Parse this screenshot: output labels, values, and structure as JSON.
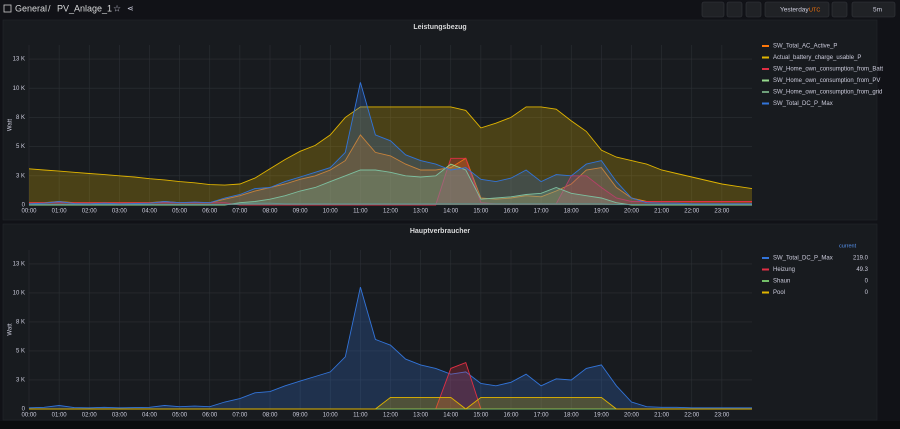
{
  "header": {
    "home": "General",
    "separator": "/",
    "dashboard": "PV_Anlage_1",
    "time_range": "Yesterday",
    "timezone": "UTC",
    "refresh": "5m"
  },
  "chart_data": [
    {
      "type": "line",
      "title": "Leistungsbezug",
      "y_label": "Watt",
      "grid": true,
      "legend": "right",
      "x": [
        0,
        0.5,
        1,
        1.5,
        2,
        2.5,
        3,
        3.5,
        4,
        4.5,
        5,
        5.5,
        6,
        6.5,
        7,
        7.5,
        8,
        8.5,
        9,
        9.5,
        10,
        10.5,
        11,
        11.5,
        12,
        12.5,
        13,
        13.5,
        14,
        14.5,
        15,
        15.5,
        16,
        16.5,
        17,
        17.5,
        18,
        18.5,
        19,
        19.5,
        20,
        20.5,
        21,
        21.5,
        22,
        22.5,
        23,
        23.5,
        24
      ],
      "xlim": [
        0,
        24
      ],
      "xticks": [
        {
          "value": 0,
          "label": "00:00"
        },
        {
          "value": 1,
          "label": "01:00"
        },
        {
          "value": 2,
          "label": "02:00"
        },
        {
          "value": 3,
          "label": "03:00"
        },
        {
          "value": 4,
          "label": "04:00"
        },
        {
          "value": 5,
          "label": "05:00"
        },
        {
          "value": 6,
          "label": "06:00"
        },
        {
          "value": 7,
          "label": "07:00"
        },
        {
          "value": 8,
          "label": "08:00"
        },
        {
          "value": 9,
          "label": "09:00"
        },
        {
          "value": 10,
          "label": "10:00"
        },
        {
          "value": 11,
          "label": "11:00"
        },
        {
          "value": 12,
          "label": "12:00"
        },
        {
          "value": 13,
          "label": "13:00"
        },
        {
          "value": 14,
          "label": "14:00"
        },
        {
          "value": 15,
          "label": "15:00"
        },
        {
          "value": 16,
          "label": "16:00"
        },
        {
          "value": 17,
          "label": "17:00"
        },
        {
          "value": 18,
          "label": "18:00"
        },
        {
          "value": 19,
          "label": "19:00"
        },
        {
          "value": 20,
          "label": "20:00"
        },
        {
          "value": 21,
          "label": "21:00"
        },
        {
          "value": 22,
          "label": "22:00"
        },
        {
          "value": 23,
          "label": "23:00"
        }
      ],
      "ylim": [
        0,
        13700
      ],
      "yticks": [
        0,
        {
          "value": 2500,
          "label": "3 K"
        },
        {
          "value": 5000,
          "label": "5 K"
        },
        {
          "value": 7500,
          "label": "8 K"
        },
        {
          "value": 10000,
          "label": "10 K"
        },
        {
          "value": 12500,
          "label": "13 K"
        }
      ],
      "series": [
        {
          "name": "SW_Total_AC_Active_P",
          "color": "#ff780a",
          "values": [
            200,
            200,
            300,
            200,
            200,
            200,
            200,
            200,
            200,
            300,
            200,
            200,
            200,
            500,
            800,
            1200,
            1500,
            1800,
            2200,
            2500,
            3000,
            3800,
            6000,
            4500,
            4200,
            3500,
            3000,
            3000,
            3200,
            4000,
            600,
            500,
            600,
            800,
            700,
            1200,
            1800,
            3000,
            3200,
            1500,
            600,
            300,
            300,
            300,
            300,
            300,
            300,
            300,
            300
          ]
        },
        {
          "name": "Actual_battery_charge_usable_P",
          "color": "#e0b400",
          "values": [
            3100,
            3000,
            2900,
            2800,
            2700,
            2600,
            2500,
            2400,
            2250,
            2150,
            2000,
            1900,
            1750,
            1700,
            1800,
            2300,
            3100,
            3900,
            4600,
            5100,
            6000,
            7500,
            8400,
            8400,
            8400,
            8400,
            8400,
            8400,
            8400,
            8100,
            6600,
            7000,
            7500,
            8400,
            8400,
            8200,
            7200,
            6300,
            4700,
            4100,
            3800,
            3500,
            3000,
            2700,
            2400,
            2100,
            1800,
            1600,
            1400
          ]
        },
        {
          "name": "SW_Home_own_consumption_from_Batt",
          "color": "#e02f44",
          "values": [
            200,
            200,
            200,
            200,
            200,
            200,
            200,
            200,
            200,
            200,
            200,
            200,
            200,
            200,
            0,
            0,
            0,
            0,
            0,
            0,
            0,
            0,
            0,
            0,
            0,
            0,
            0,
            0,
            4000,
            4000,
            200,
            100,
            100,
            100,
            100,
            100,
            2500,
            2500,
            1500,
            600,
            300,
            300,
            300,
            300,
            300,
            300,
            300,
            300,
            300
          ]
        },
        {
          "name": "SW_Home_own_consumption_from_PV",
          "color": "#96d98d",
          "values": [
            0,
            0,
            0,
            0,
            0,
            0,
            0,
            0,
            0,
            0,
            0,
            0,
            0,
            0,
            200,
            300,
            500,
            800,
            1200,
            1500,
            2000,
            2500,
            3000,
            3000,
            2800,
            2500,
            2400,
            2500,
            3500,
            3000,
            500,
            600,
            700,
            900,
            1000,
            1500,
            1000,
            800,
            600,
            200,
            0,
            0,
            0,
            0,
            0,
            0,
            0,
            0,
            0
          ]
        },
        {
          "name": "SW_Home_own_consumption_from_grid",
          "color": "#6e9f7a",
          "values": [
            50,
            50,
            50,
            50,
            50,
            50,
            50,
            50,
            50,
            50,
            50,
            50,
            50,
            50,
            100,
            150,
            150,
            100,
            100,
            100,
            100,
            100,
            100,
            100,
            100,
            100,
            100,
            100,
            100,
            100,
            100,
            100,
            100,
            100,
            100,
            100,
            100,
            100,
            100,
            50,
            50,
            50,
            50,
            50,
            50,
            50,
            50,
            50,
            50
          ]
        },
        {
          "name": "SW_Total_DC_P_Max",
          "color": "#3274d9",
          "values": [
            100,
            150,
            300,
            120,
            100,
            150,
            100,
            120,
            150,
            300,
            200,
            250,
            200,
            600,
            900,
            1400,
            1500,
            2000,
            2400,
            2800,
            3200,
            4500,
            10500,
            6000,
            5500,
            4300,
            3800,
            3500,
            3000,
            3200,
            2200,
            2000,
            2300,
            3000,
            2000,
            2600,
            2500,
            3500,
            3800,
            2000,
            600,
            200,
            150,
            150,
            100,
            100,
            100,
            100,
            100
          ]
        }
      ]
    },
    {
      "type": "line",
      "title": "Hauptverbraucher",
      "y_label": "Watt",
      "grid": true,
      "legend": "right",
      "legend_header": "current",
      "x": [
        0,
        0.5,
        1,
        1.5,
        2,
        2.5,
        3,
        3.5,
        4,
        4.5,
        5,
        5.5,
        6,
        6.5,
        7,
        7.5,
        8,
        8.5,
        9,
        9.5,
        10,
        10.5,
        11,
        11.5,
        12,
        12.5,
        13,
        13.5,
        14,
        14.5,
        15,
        15.5,
        16,
        16.5,
        17,
        17.5,
        18,
        18.5,
        19,
        19.5,
        20,
        20.5,
        21,
        21.5,
        22,
        22.5,
        23,
        23.5,
        24
      ],
      "xlim": [
        0,
        24
      ],
      "xticks": [
        {
          "value": 0,
          "label": "00:00"
        },
        {
          "value": 1,
          "label": "01:00"
        },
        {
          "value": 2,
          "label": "02:00"
        },
        {
          "value": 3,
          "label": "03:00"
        },
        {
          "value": 4,
          "label": "04:00"
        },
        {
          "value": 5,
          "label": "05:00"
        },
        {
          "value": 6,
          "label": "06:00"
        },
        {
          "value": 7,
          "label": "07:00"
        },
        {
          "value": 8,
          "label": "08:00"
        },
        {
          "value": 9,
          "label": "09:00"
        },
        {
          "value": 10,
          "label": "10:00"
        },
        {
          "value": 11,
          "label": "11:00"
        },
        {
          "value": 12,
          "label": "12:00"
        },
        {
          "value": 13,
          "label": "13:00"
        },
        {
          "value": 14,
          "label": "14:00"
        },
        {
          "value": 15,
          "label": "15:00"
        },
        {
          "value": 16,
          "label": "16:00"
        },
        {
          "value": 17,
          "label": "17:00"
        },
        {
          "value": 18,
          "label": "18:00"
        },
        {
          "value": 19,
          "label": "19:00"
        },
        {
          "value": 20,
          "label": "20:00"
        },
        {
          "value": 21,
          "label": "21:00"
        },
        {
          "value": 22,
          "label": "22:00"
        },
        {
          "value": 23,
          "label": "23:00"
        }
      ],
      "ylim": [
        0,
        13700
      ],
      "yticks": [
        0,
        {
          "value": 2500,
          "label": "3 K"
        },
        {
          "value": 5000,
          "label": "5 K"
        },
        {
          "value": 7500,
          "label": "8 K"
        },
        {
          "value": 10000,
          "label": "10 K"
        },
        {
          "value": 12500,
          "label": "13 K"
        }
      ],
      "series": [
        {
          "name": "SW_Total_DC_P_Max",
          "color": "#3274d9",
          "current": {
            "value": 219,
            "label": "219.0"
          },
          "values": [
            100,
            150,
            300,
            120,
            100,
            150,
            100,
            120,
            150,
            300,
            200,
            250,
            200,
            600,
            900,
            1400,
            1500,
            2000,
            2400,
            2800,
            3200,
            4500,
            10500,
            6000,
            5500,
            4300,
            3800,
            3500,
            3000,
            3200,
            2200,
            2000,
            2300,
            3000,
            2000,
            2600,
            2500,
            3500,
            3800,
            2000,
            600,
            200,
            150,
            150,
            100,
            100,
            100,
            100,
            100
          ]
        },
        {
          "name": "Heizung",
          "color": "#e02f44",
          "current": 49.3,
          "values": [
            0,
            0,
            0,
            0,
            0,
            0,
            0,
            0,
            0,
            0,
            0,
            0,
            0,
            0,
            0,
            0,
            0,
            0,
            0,
            0,
            0,
            0,
            0,
            0,
            0,
            0,
            0,
            0,
            3500,
            4000,
            0,
            0,
            0,
            0,
            0,
            0,
            0,
            0,
            0,
            0,
            0,
            0,
            0,
            0,
            0,
            0,
            0,
            0,
            0
          ]
        },
        {
          "name": "Shaun",
          "color": "#73bf69",
          "current": 0,
          "values": [
            0,
            0,
            0,
            0,
            0,
            0,
            0,
            0,
            0,
            0,
            0,
            0,
            0,
            0,
            0,
            0,
            0,
            0,
            0,
            0,
            0,
            0,
            0,
            0,
            0,
            0,
            0,
            0,
            0,
            0,
            0,
            0,
            0,
            0,
            0,
            0,
            0,
            0,
            0,
            0,
            0,
            0,
            0,
            0,
            0,
            0,
            0,
            0,
            0
          ]
        },
        {
          "name": "Pool",
          "color": "#e0b400",
          "current": 0,
          "values": [
            0,
            0,
            0,
            0,
            0,
            0,
            0,
            0,
            0,
            0,
            0,
            0,
            0,
            0,
            0,
            0,
            0,
            0,
            0,
            0,
            0,
            0,
            0,
            0,
            1000,
            1000,
            1000,
            1000,
            1000,
            0,
            1000,
            1000,
            1000,
            1000,
            1000,
            1000,
            1000,
            1000,
            1000,
            0,
            0,
            0,
            0,
            0,
            0,
            0,
            0,
            0,
            0
          ]
        }
      ]
    }
  ]
}
